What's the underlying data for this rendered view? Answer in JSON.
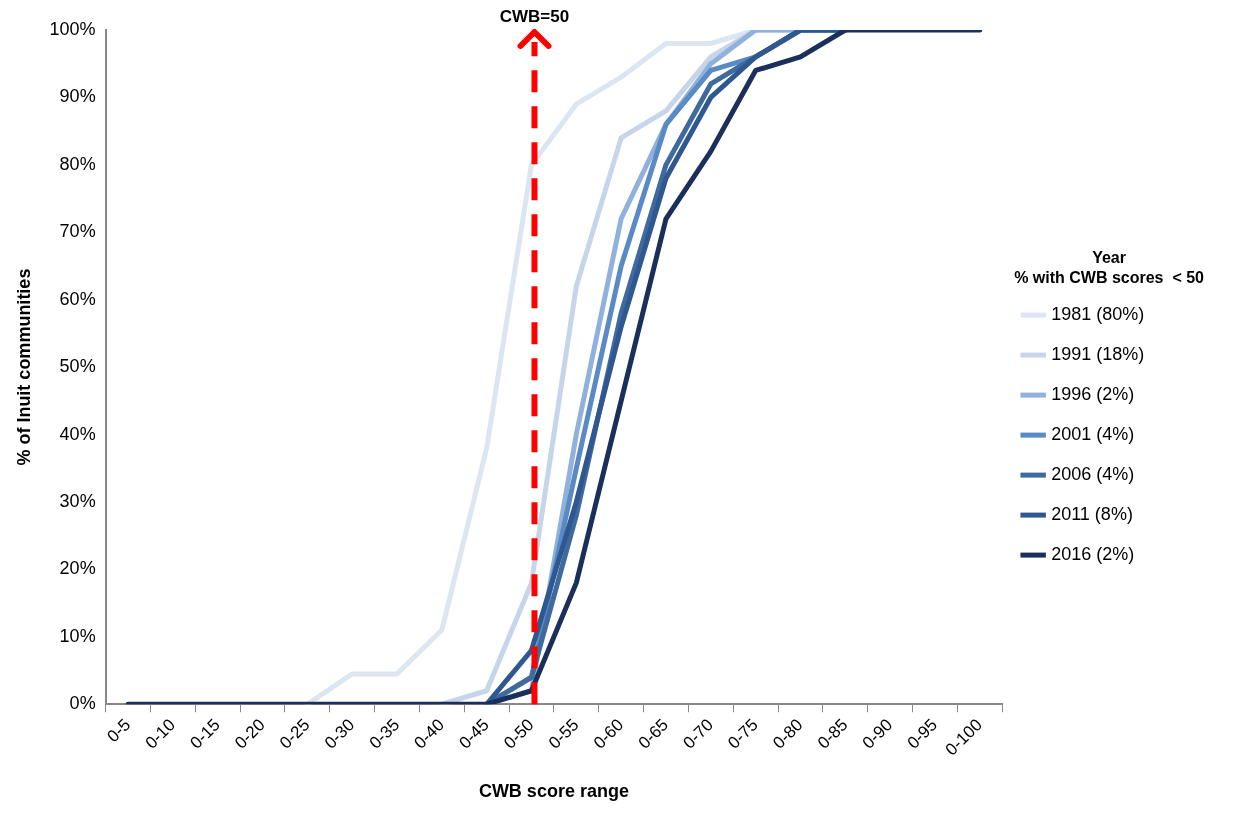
{
  "chart_data": {
    "type": "line",
    "xlabel": "CWB score range",
    "ylabel": "% of Inuit communities",
    "legend_title": "Year\n% with CWB scores  < 50",
    "categories": [
      "0-5",
      "0-10",
      "0-15",
      "0-20",
      "0-25",
      "0-30",
      "0-35",
      "0-40",
      "0-45",
      "0-50",
      "0-55",
      "0-60",
      "0-65",
      "0-70",
      "0-75",
      "0-80",
      "0-85",
      "0-90",
      "0-95",
      "0-100"
    ],
    "ylim": [
      0,
      100
    ],
    "yticks": [
      {
        "value": 0,
        "label": "0%"
      },
      {
        "value": 10,
        "label": "10%"
      },
      {
        "value": 20,
        "label": "20%"
      },
      {
        "value": 30,
        "label": "30%"
      },
      {
        "value": 40,
        "label": "40%"
      },
      {
        "value": 50,
        "label": "50%"
      },
      {
        "value": 60,
        "label": "60%"
      },
      {
        "value": 70,
        "label": "70%"
      },
      {
        "value": 80,
        "label": "80%"
      },
      {
        "value": 90,
        "label": "90%"
      },
      {
        "value": 100,
        "label": "100%"
      }
    ],
    "grid": false,
    "legend": "right",
    "marker": "none",
    "line_style": "solid",
    "ref_lines": [
      {
        "axis": "x",
        "value": "0-50",
        "label": "CWB=50",
        "color": "#ff0000",
        "line_style": "dashed"
      }
    ],
    "series": [
      {
        "name": "1981 (80%)",
        "color": "#dce6f2",
        "values": [
          null,
          null,
          null,
          null,
          0,
          4.5,
          4.5,
          11,
          38,
          80,
          89,
          93,
          98,
          98,
          100,
          100,
          100,
          null,
          null,
          null
        ]
      },
      {
        "name": "1991 (18%)",
        "color": "#c6d5ea",
        "values": [
          null,
          null,
          null,
          null,
          null,
          null,
          null,
          0,
          2,
          18,
          62,
          84,
          88,
          96,
          100,
          100,
          100,
          null,
          null,
          null
        ]
      },
      {
        "name": "1996 (2%)",
        "color": "#8fb1dc",
        "values": [
          null,
          null,
          null,
          null,
          null,
          null,
          null,
          null,
          0,
          2,
          40,
          72,
          86,
          95,
          100,
          100,
          100,
          null,
          null,
          null
        ]
      },
      {
        "name": "2001 (4%)",
        "color": "#5a8ac6",
        "values": [
          null,
          null,
          null,
          null,
          null,
          null,
          null,
          null,
          0,
          4,
          35,
          65,
          86,
          94,
          96,
          100,
          100,
          null,
          null,
          null
        ]
      },
      {
        "name": "2006 (4%)",
        "color": "#3f6a9e",
        "values": [
          null,
          null,
          null,
          null,
          null,
          null,
          null,
          null,
          0,
          4,
          28,
          58,
          80,
          92,
          96,
          100,
          100,
          null,
          null,
          null
        ]
      },
      {
        "name": "2011 (8%)",
        "color": "#2f5890",
        "values": [
          null,
          null,
          null,
          null,
          null,
          null,
          null,
          null,
          0,
          8,
          30,
          56,
          78,
          90,
          96,
          100,
          100,
          null,
          null,
          null
        ]
      },
      {
        "name": "2016 (2%)",
        "color": "#1a2f5a",
        "values": [
          0,
          0,
          0,
          0,
          0,
          0,
          0,
          0,
          0,
          2,
          18,
          45,
          72,
          82,
          94,
          96,
          100,
          100,
          100,
          100
        ]
      }
    ]
  }
}
